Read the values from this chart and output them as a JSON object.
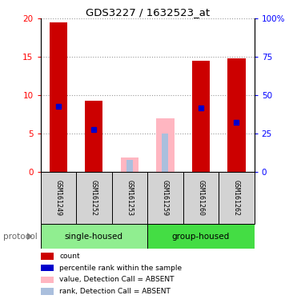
{
  "title": "GDS3227 / 1632523_at",
  "samples": [
    "GSM161249",
    "GSM161252",
    "GSM161253",
    "GSM161259",
    "GSM161260",
    "GSM161262"
  ],
  "count_values": [
    19.5,
    9.3,
    null,
    null,
    14.5,
    14.8
  ],
  "percentile_values": [
    8.5,
    5.5,
    null,
    null,
    8.3,
    6.5
  ],
  "absent_value_values": [
    null,
    null,
    1.9,
    7.0,
    null,
    null
  ],
  "absent_rank_values": [
    null,
    null,
    1.6,
    5.0,
    null,
    null
  ],
  "ylim": [
    0,
    20
  ],
  "y2lim": [
    0,
    100
  ],
  "yticks": [
    0,
    5,
    10,
    15,
    20
  ],
  "y2ticks": [
    0,
    25,
    50,
    75,
    100
  ],
  "ytick_labels": [
    "0",
    "5",
    "10",
    "15",
    "20"
  ],
  "y2tick_labels": [
    "0",
    "25",
    "50",
    "75",
    "100%"
  ],
  "bar_width": 0.5,
  "count_color": "#CC0000",
  "percentile_color": "#0000CC",
  "absent_value_color": "#FFB6C1",
  "absent_rank_color": "#AABFDD",
  "grid_color": "#999999",
  "label_area_color": "#D3D3D3",
  "single_color": "#90EE90",
  "group_color": "#44DD44",
  "protocol_label": "protocol",
  "single_housed_label": "single-housed",
  "group_housed_label": "group-housed",
  "legend_items": [
    [
      "#CC0000",
      "count"
    ],
    [
      "#0000CC",
      "percentile rank within the sample"
    ],
    [
      "#FFB6C1",
      "value, Detection Call = ABSENT"
    ],
    [
      "#AABFDD",
      "rank, Detection Call = ABSENT"
    ]
  ]
}
